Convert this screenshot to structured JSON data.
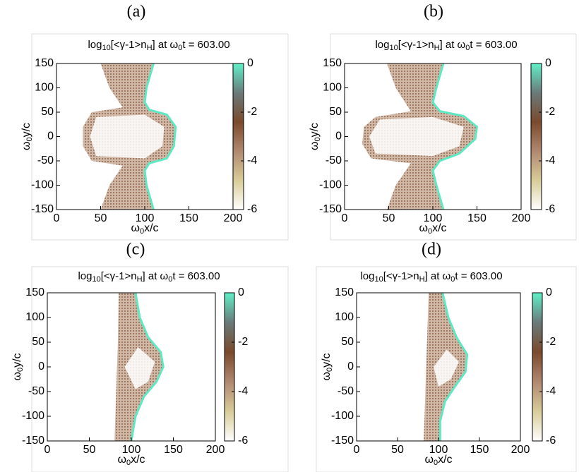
{
  "chart_data": [
    {
      "type": "heatmap",
      "panel": "(a)",
      "title": [
        "log",
        "10",
        "[<γ-1>n",
        "H",
        "] at ω",
        "0",
        "t = 603.00"
      ],
      "x_label": [
        "ω",
        "0",
        "x/c"
      ],
      "y_label": [
        "ω",
        "0",
        "y/c"
      ],
      "xlim": [
        0,
        200
      ],
      "xticks": [
        0,
        50,
        100,
        150,
        200
      ],
      "ylim": [
        -150,
        150
      ],
      "yticks": [
        -150,
        -100,
        -50,
        0,
        50,
        100,
        150
      ],
      "clim": [
        -6,
        0
      ],
      "cticks": [
        -6,
        -4,
        -2,
        0
      ],
      "colormap": [
        "#ffffff",
        "#d8cc98",
        "#b08870",
        "#7a4a2c",
        "#6a7a7a",
        "#60f0c8"
      ]
    },
    {
      "type": "heatmap",
      "panel": "(b)",
      "title": [
        "log",
        "10",
        "[<γ-1>n",
        "H",
        "] at ω",
        "0",
        "t = 603.00"
      ],
      "x_label": [
        "ω",
        "0",
        "x/c"
      ],
      "y_label": [
        "ω",
        "0",
        "y/c"
      ],
      "xlim": [
        0,
        200
      ],
      "xticks": [
        0,
        50,
        100,
        150,
        200
      ],
      "ylim": [
        -150,
        150
      ],
      "yticks": [
        -150,
        -100,
        -50,
        0,
        50,
        100,
        150
      ],
      "clim": [
        -6,
        0
      ],
      "cticks": [
        -6,
        -4,
        -2,
        0
      ],
      "colormap": [
        "#ffffff",
        "#d8cc98",
        "#b08870",
        "#7a4a2c",
        "#6a7a7a",
        "#60f0c8"
      ]
    },
    {
      "type": "heatmap",
      "panel": "(c)",
      "title": [
        "log",
        "10",
        "[<γ-1>n",
        "H",
        "] at ω",
        "0",
        "t = 603.00"
      ],
      "x_label": [
        "ω",
        "0",
        "x/c"
      ],
      "y_label": [
        "ω",
        "0",
        "y/c"
      ],
      "xlim": [
        0,
        200
      ],
      "xticks": [
        0,
        50,
        100,
        150,
        200
      ],
      "ylim": [
        -150,
        150
      ],
      "yticks": [
        -150,
        -100,
        -50,
        0,
        50,
        100,
        150
      ],
      "clim": [
        -6,
        0
      ],
      "cticks": [
        -6,
        -4,
        -2,
        0
      ],
      "colormap": [
        "#ffffff",
        "#d8cc98",
        "#b08870",
        "#7a4a2c",
        "#6a7a7a",
        "#60f0c8"
      ]
    },
    {
      "type": "heatmap",
      "panel": "(d)",
      "title": [
        "log",
        "10",
        "[<γ-1>n",
        "H",
        "] at ω",
        "0",
        "t = 603.00"
      ],
      "x_label": [
        "ω",
        "0",
        "x/c"
      ],
      "y_label": [
        "ω",
        "0",
        "y/c"
      ],
      "xlim": [
        0,
        200
      ],
      "xticks": [
        0,
        50,
        100,
        150,
        200
      ],
      "ylim": [
        -150,
        150
      ],
      "yticks": [
        -150,
        -100,
        -50,
        0,
        50,
        100,
        150
      ],
      "clim": [
        -6,
        0
      ],
      "cticks": [
        -6,
        -4,
        -2,
        0
      ],
      "colormap": [
        "#ffffff",
        "#d8cc98",
        "#b08870",
        "#7a4a2c",
        "#6a7a7a",
        "#60f0c8"
      ]
    }
  ]
}
